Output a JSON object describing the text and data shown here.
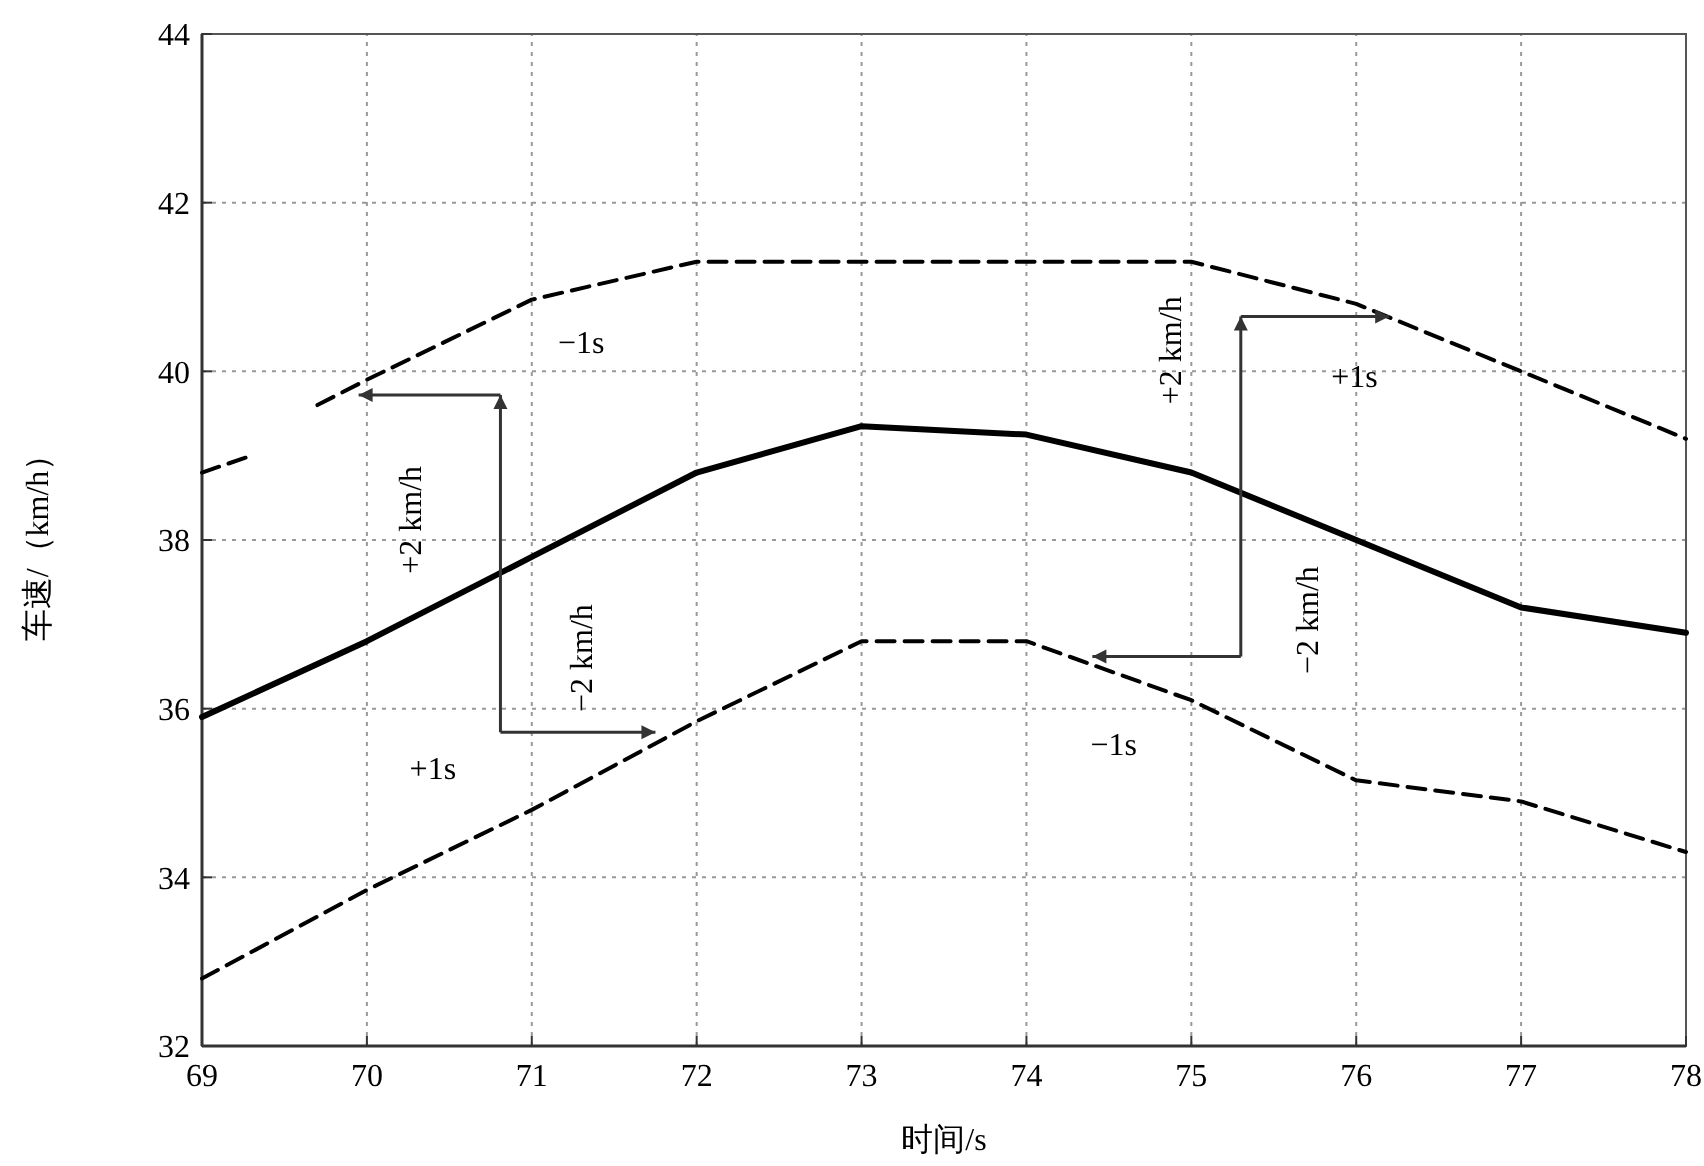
{
  "chart_data": {
    "type": "line",
    "xlabel": "时间/s",
    "ylabel": "车速/（km/h）",
    "xlim": [
      69,
      78
    ],
    "ylim": [
      32,
      44
    ],
    "xticks": [
      69,
      70,
      71,
      72,
      73,
      74,
      75,
      76,
      77,
      78
    ],
    "yticks": [
      32,
      34,
      36,
      38,
      40,
      42,
      44
    ],
    "grid": true,
    "series": [
      {
        "color": "#000000",
        "line_style": "solid",
        "x": [
          69,
          70,
          71,
          72,
          73,
          74,
          75,
          76,
          77,
          78
        ],
        "values": [
          35.9,
          36.8,
          37.8,
          38.8,
          39.35,
          39.25,
          38.8,
          38.0,
          37.2,
          36.9
        ]
      },
      {
        "color": "#000000",
        "line_style": "dashed",
        "x": [
          69,
          69.3,
          69.5,
          69.7,
          70,
          71,
          72,
          73,
          74,
          75,
          76,
          77,
          78
        ],
        "values": [
          38.8,
          39.0,
          null,
          39.6,
          39.9,
          40.85,
          41.3,
          41.3,
          41.3,
          41.3,
          40.8,
          40.0,
          39.2
        ]
      },
      {
        "color": "#000000",
        "line_style": "dashed",
        "x": [
          69,
          70,
          71,
          72,
          73,
          74,
          75,
          76,
          77,
          78
        ],
        "values": [
          32.8,
          33.85,
          34.8,
          35.85,
          36.8,
          36.8,
          36.1,
          35.15,
          34.9,
          34.3
        ]
      }
    ],
    "annotations": [
      "−1s",
      "+2 km/h",
      "−2 km/h",
      "+1s",
      "+2 km/h",
      "+1s",
      "−2 km/h",
      "−1s"
    ]
  }
}
